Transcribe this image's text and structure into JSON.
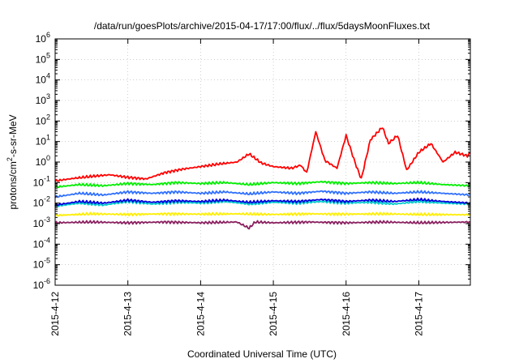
{
  "chart_data": {
    "type": "line",
    "title": "/data/run/goesPlots/archive/2015-04-17/17:00/flux/../flux/5daysMoonFluxes.txt",
    "xlabel": "Coordinated Universal Time (UTC)",
    "ylabel": "protons/cm²-s-sr-MeV",
    "ylabel_parts": {
      "pre": "protons/cm",
      "sup": "2",
      "post": "-s-sr-MeV"
    },
    "yscale": "log",
    "ylim": [
      1e-06,
      1000000.0
    ],
    "y_ticks": [
      {
        "value": 1e-06,
        "base": "10",
        "exp": "-6"
      },
      {
        "value": 1e-05,
        "base": "10",
        "exp": "-5"
      },
      {
        "value": 0.0001,
        "base": "10",
        "exp": "-4"
      },
      {
        "value": 0.001,
        "base": "10",
        "exp": "-3"
      },
      {
        "value": 0.01,
        "base": "10",
        "exp": "-2"
      },
      {
        "value": 0.1,
        "base": "10",
        "exp": "-1"
      },
      {
        "value": 1,
        "base": "10",
        "exp": "0"
      },
      {
        "value": 10.0,
        "base": "10",
        "exp": "1"
      },
      {
        "value": 100.0,
        "base": "10",
        "exp": "2"
      },
      {
        "value": 1000.0,
        "base": "10",
        "exp": "3"
      },
      {
        "value": 10000.0,
        "base": "10",
        "exp": "4"
      },
      {
        "value": 100000.0,
        "base": "10",
        "exp": "5"
      },
      {
        "value": 1000000.0,
        "base": "10",
        "exp": "6"
      }
    ],
    "xlim": [
      "2015-04-12",
      "2015-04-17T17:00"
    ],
    "x_ticks": [
      {
        "value": "2015-04-12",
        "label": "2015-4-12"
      },
      {
        "value": "2015-04-13",
        "label": "2015-4-13"
      },
      {
        "value": "2015-04-14",
        "label": "2015-4-14"
      },
      {
        "value": "2015-04-15",
        "label": "2015-4-15"
      },
      {
        "value": "2015-04-16",
        "label": "2015-4-16"
      },
      {
        "value": "2015-04-17",
        "label": "2015-4-17"
      }
    ],
    "grid": true,
    "series": [
      {
        "color": "#ff0000",
        "points": [
          [
            "2015-04-12T00:00",
            0.12
          ],
          [
            "2015-04-12T06:00",
            0.16
          ],
          [
            "2015-04-12T12:00",
            0.2
          ],
          [
            "2015-04-12T18:00",
            0.24
          ],
          [
            "2015-04-13T00:00",
            0.18
          ],
          [
            "2015-04-13T06:00",
            0.15
          ],
          [
            "2015-04-13T12:00",
            0.3
          ],
          [
            "2015-04-13T18:00",
            0.45
          ],
          [
            "2015-04-14T00:00",
            0.6
          ],
          [
            "2015-04-14T06:00",
            0.8
          ],
          [
            "2015-04-14T12:00",
            1.0
          ],
          [
            "2015-04-14T16:00",
            2.5
          ],
          [
            "2015-04-14T20:00",
            0.9
          ],
          [
            "2015-04-15T00:00",
            0.6
          ],
          [
            "2015-04-15T06:00",
            0.5
          ],
          [
            "2015-04-15T09:00",
            0.7
          ],
          [
            "2015-04-15T11:00",
            0.3
          ],
          [
            "2015-04-15T14:00",
            30
          ],
          [
            "2015-04-15T17:00",
            1.2
          ],
          [
            "2015-04-15T21:00",
            0.5
          ],
          [
            "2015-04-16T00:00",
            20
          ],
          [
            "2015-04-16T03:00",
            0.9
          ],
          [
            "2015-04-16T05:00",
            0.15
          ],
          [
            "2015-04-16T08:00",
            12
          ],
          [
            "2015-04-16T12:00",
            50
          ],
          [
            "2015-04-16T14:00",
            8
          ],
          [
            "2015-04-16T17:00",
            20
          ],
          [
            "2015-04-16T20:00",
            0.4
          ],
          [
            "2015-04-17T00:00",
            3
          ],
          [
            "2015-04-17T04:00",
            8
          ],
          [
            "2015-04-17T08:00",
            1
          ],
          [
            "2015-04-17T12:00",
            3
          ],
          [
            "2015-04-17T16:00",
            2
          ],
          [
            "2015-04-17T17:00",
            3
          ]
        ]
      },
      {
        "color": "#00ee00",
        "points": [
          [
            "2015-04-12T00:00",
            0.06
          ],
          [
            "2015-04-12T08:00",
            0.08
          ],
          [
            "2015-04-12T16:00",
            0.07
          ],
          [
            "2015-04-13T00:00",
            0.09
          ],
          [
            "2015-04-13T08:00",
            0.08
          ],
          [
            "2015-04-13T16:00",
            0.1
          ],
          [
            "2015-04-14T00:00",
            0.09
          ],
          [
            "2015-04-14T08:00",
            0.1
          ],
          [
            "2015-04-14T16:00",
            0.08
          ],
          [
            "2015-04-15T00:00",
            0.1
          ],
          [
            "2015-04-15T08:00",
            0.09
          ],
          [
            "2015-04-15T16:00",
            0.11
          ],
          [
            "2015-04-16T00:00",
            0.09
          ],
          [
            "2015-04-16T08:00",
            0.1
          ],
          [
            "2015-04-16T16:00",
            0.09
          ],
          [
            "2015-04-17T00:00",
            0.1
          ],
          [
            "2015-04-17T08:00",
            0.08
          ],
          [
            "2015-04-17T17:00",
            0.07
          ]
        ]
      },
      {
        "color": "#00cccc",
        "points": [
          [
            "2015-04-12T00:00",
            0.007
          ],
          [
            "2015-04-12T08:00",
            0.01
          ],
          [
            "2015-04-12T16:00",
            0.008
          ],
          [
            "2015-04-13T00:00",
            0.012
          ],
          [
            "2015-04-13T08:00",
            0.009
          ],
          [
            "2015-04-13T16:00",
            0.011
          ],
          [
            "2015-04-14T00:00",
            0.01
          ],
          [
            "2015-04-14T08:00",
            0.012
          ],
          [
            "2015-04-14T16:00",
            0.009
          ],
          [
            "2015-04-15T00:00",
            0.011
          ],
          [
            "2015-04-15T08:00",
            0.01
          ],
          [
            "2015-04-15T16:00",
            0.012
          ],
          [
            "2015-04-16T00:00",
            0.01
          ],
          [
            "2015-04-16T08:00",
            0.011
          ],
          [
            "2015-04-16T16:00",
            0.009
          ],
          [
            "2015-04-17T00:00",
            0.012
          ],
          [
            "2015-04-17T08:00",
            0.01
          ],
          [
            "2015-04-17T17:00",
            0.009
          ]
        ]
      },
      {
        "color": "#3070ff",
        "points": [
          [
            "2015-04-12T00:00",
            0.02
          ],
          [
            "2015-04-12T08:00",
            0.03
          ],
          [
            "2015-04-12T16:00",
            0.025
          ],
          [
            "2015-04-13T00:00",
            0.035
          ],
          [
            "2015-04-13T08:00",
            0.03
          ],
          [
            "2015-04-13T16:00",
            0.035
          ],
          [
            "2015-04-14T00:00",
            0.03
          ],
          [
            "2015-04-14T08:00",
            0.035
          ],
          [
            "2015-04-14T16:00",
            0.028
          ],
          [
            "2015-04-15T00:00",
            0.035
          ],
          [
            "2015-04-15T08:00",
            0.03
          ],
          [
            "2015-04-15T16:00",
            0.038
          ],
          [
            "2015-04-16T00:00",
            0.03
          ],
          [
            "2015-04-16T08:00",
            0.035
          ],
          [
            "2015-04-16T16:00",
            0.03
          ],
          [
            "2015-04-17T00:00",
            0.035
          ],
          [
            "2015-04-17T08:00",
            0.03
          ],
          [
            "2015-04-17T17:00",
            0.025
          ]
        ]
      },
      {
        "color": "#0000dd",
        "points": [
          [
            "2015-04-12T00:00",
            0.008
          ],
          [
            "2015-04-12T08:00",
            0.012
          ],
          [
            "2015-04-12T16:00",
            0.01
          ],
          [
            "2015-04-13T00:00",
            0.014
          ],
          [
            "2015-04-13T08:00",
            0.011
          ],
          [
            "2015-04-13T16:00",
            0.013
          ],
          [
            "2015-04-14T00:00",
            0.012
          ],
          [
            "2015-04-14T08:00",
            0.014
          ],
          [
            "2015-04-14T16:00",
            0.011
          ],
          [
            "2015-04-15T00:00",
            0.013
          ],
          [
            "2015-04-15T08:00",
            0.012
          ],
          [
            "2015-04-15T16:00",
            0.015
          ],
          [
            "2015-04-16T00:00",
            0.012
          ],
          [
            "2015-04-16T08:00",
            0.014
          ],
          [
            "2015-04-16T16:00",
            0.012
          ],
          [
            "2015-04-17T00:00",
            0.015
          ],
          [
            "2015-04-17T08:00",
            0.012
          ],
          [
            "2015-04-17T17:00",
            0.01
          ]
        ]
      },
      {
        "color": "#ffee00",
        "points": [
          [
            "2015-04-12T00:00",
            0.0025
          ],
          [
            "2015-04-12T12:00",
            0.003
          ],
          [
            "2015-04-13T00:00",
            0.0028
          ],
          [
            "2015-04-13T12:00",
            0.003
          ],
          [
            "2015-04-14T00:00",
            0.0029
          ],
          [
            "2015-04-14T12:00",
            0.003
          ],
          [
            "2015-04-15T00:00",
            0.0028
          ],
          [
            "2015-04-15T12:00",
            0.003
          ],
          [
            "2015-04-16T00:00",
            0.0029
          ],
          [
            "2015-04-16T12:00",
            0.003
          ],
          [
            "2015-04-17T00:00",
            0.0028
          ],
          [
            "2015-04-17T17:00",
            0.0027
          ]
        ]
      },
      {
        "color": "#8b2060",
        "points": [
          [
            "2015-04-12T00:00",
            0.0011
          ],
          [
            "2015-04-12T12:00",
            0.0012
          ],
          [
            "2015-04-13T00:00",
            0.0011
          ],
          [
            "2015-04-13T12:00",
            0.0012
          ],
          [
            "2015-04-14T00:00",
            0.0011
          ],
          [
            "2015-04-14T12:00",
            0.0012
          ],
          [
            "2015-04-14T16:00",
            0.0006
          ],
          [
            "2015-04-14T18:00",
            0.0012
          ],
          [
            "2015-04-15T00:00",
            0.0011
          ],
          [
            "2015-04-15T12:00",
            0.0012
          ],
          [
            "2015-04-16T00:00",
            0.0011
          ],
          [
            "2015-04-16T12:00",
            0.0012
          ],
          [
            "2015-04-17T00:00",
            0.0011
          ],
          [
            "2015-04-17T17:00",
            0.0012
          ]
        ]
      }
    ]
  }
}
